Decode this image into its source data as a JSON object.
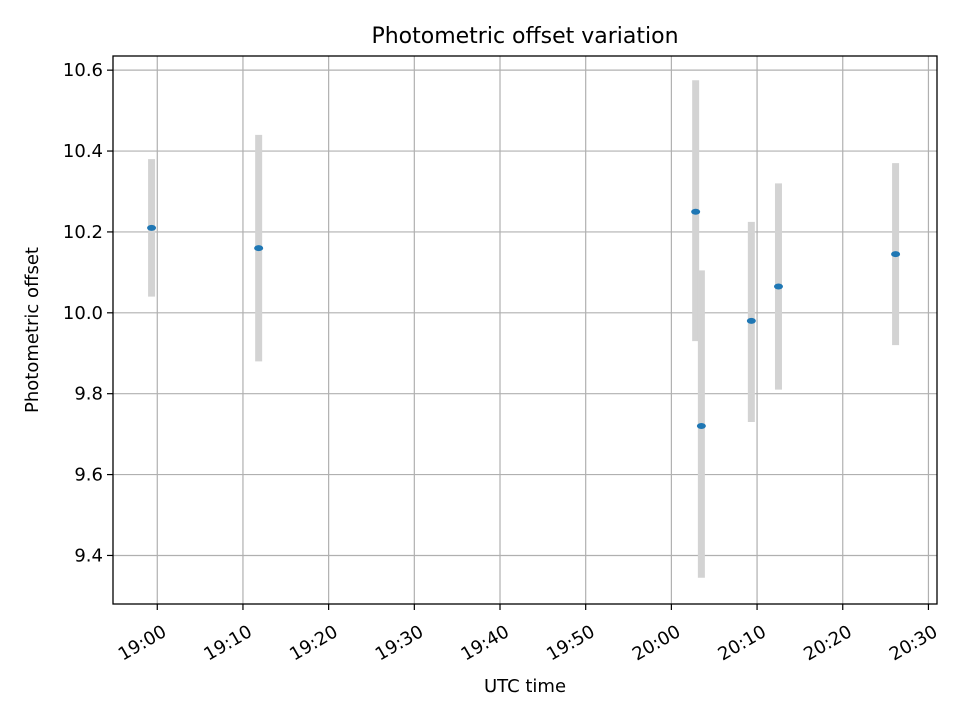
{
  "chart_data": {
    "type": "scatter",
    "title": "Photometric offset variation",
    "xlabel": "UTC time",
    "ylabel": "Photometric offset",
    "x_axis": {
      "type": "time",
      "ticks": [
        "19:00",
        "19:10",
        "19:20",
        "19:30",
        "19:40",
        "19:50",
        "20:00",
        "20:10",
        "20:20",
        "20:30"
      ],
      "range": [
        "18:54:50",
        "20:31:00"
      ]
    },
    "y_axis": {
      "ticks": [
        "9.4",
        "9.6",
        "9.8",
        "10.0",
        "10.2",
        "10.4",
        "10.6"
      ],
      "range": [
        9.28,
        10.635
      ]
    },
    "grid": true,
    "series": [
      {
        "marker_color": "#1f77b4",
        "errorbar_color": "#d3d3d3",
        "points": [
          {
            "time": "18:59:20",
            "y": 10.21,
            "y_low": 10.04,
            "y_high": 10.38
          },
          {
            "time": "19:11:50",
            "y": 10.16,
            "y_low": 9.88,
            "y_high": 10.44
          },
          {
            "time": "20:02:50",
            "y": 10.25,
            "y_low": 9.93,
            "y_high": 10.575
          },
          {
            "time": "20:03:30",
            "y": 9.72,
            "y_low": 9.345,
            "y_high": 10.105
          },
          {
            "time": "20:09:20",
            "y": 9.98,
            "y_low": 9.73,
            "y_high": 10.225
          },
          {
            "time": "20:12:30",
            "y": 10.065,
            "y_low": 9.81,
            "y_high": 10.32
          },
          {
            "time": "20:26:10",
            "y": 10.145,
            "y_low": 9.92,
            "y_high": 10.37
          }
        ]
      }
    ]
  }
}
